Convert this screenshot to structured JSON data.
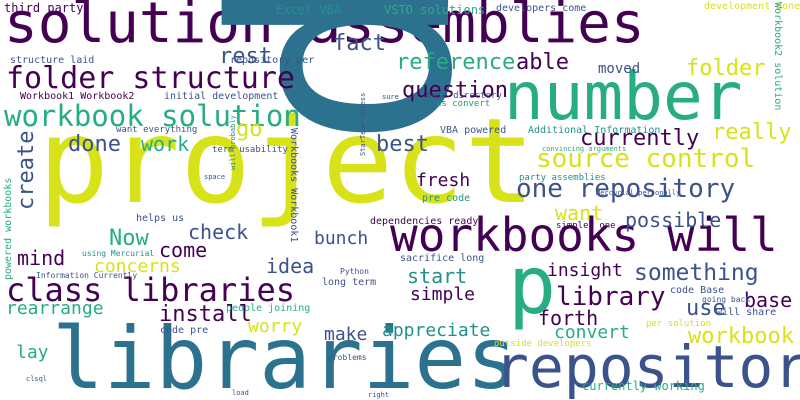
{
  "palette": {
    "deep_purple": "#440154",
    "indigo": "#3b528b",
    "teal_blue": "#2c728e",
    "teal": "#21918c",
    "green": "#27ad81",
    "light_green": "#5ec962",
    "yellow_green": "#addc30",
    "yellow": "#d8e219"
  },
  "words": [
    {
      "text": "project",
      "color": "#d8e219"
    },
    {
      "text": "solution assemblies",
      "color": "#440154"
    },
    {
      "text": "number",
      "color": "#27ad81"
    },
    {
      "text": "libraries",
      "color": "#2c728e"
    },
    {
      "text": "p",
      "color": "#2c728e"
    },
    {
      "text": "p",
      "color": "#27ad81"
    },
    {
      "text": "workbooks will",
      "color": "#440154"
    },
    {
      "text": "repository",
      "color": "#3b528b"
    },
    {
      "text": "class libraries",
      "color": "#440154"
    },
    {
      "text": "folder structure",
      "color": "#440154"
    },
    {
      "text": "workbook solution",
      "color": "#27ad81"
    },
    {
      "text": "source control",
      "color": "#d8e219"
    },
    {
      "text": "one repository",
      "color": "#3b528b"
    },
    {
      "text": "library",
      "color": "#440154"
    },
    {
      "text": "workbook",
      "color": "#d8e219"
    },
    {
      "text": "something",
      "color": "#3b528b"
    },
    {
      "text": "reference",
      "color": "#27ad81"
    },
    {
      "text": "question",
      "color": "#440154"
    },
    {
      "text": "currently",
      "color": "#440154"
    },
    {
      "text": "really",
      "color": "#d8e219"
    },
    {
      "text": "folder",
      "color": "#d8e219"
    },
    {
      "text": "able",
      "color": "#440154"
    },
    {
      "text": "fact",
      "color": "#3b528b"
    },
    {
      "text": "rest",
      "color": "#3b528b"
    },
    {
      "text": "go",
      "color": "#d8e219"
    },
    {
      "text": "done",
      "color": "#3b528b"
    },
    {
      "text": "work",
      "color": "#27ad81"
    },
    {
      "text": "best",
      "color": "#3b528b"
    },
    {
      "text": "fresh",
      "color": "#440154"
    },
    {
      "text": "want",
      "color": "#d8e219"
    },
    {
      "text": "possible",
      "color": "#3b528b"
    },
    {
      "text": "Now",
      "color": "#27ad81"
    },
    {
      "text": "create",
      "color": "#3b528b"
    },
    {
      "text": "idea",
      "color": "#3b528b"
    },
    {
      "text": "check",
      "color": "#3b528b"
    },
    {
      "text": "come",
      "color": "#440154"
    },
    {
      "text": "mind",
      "color": "#440154"
    },
    {
      "text": "concerns",
      "color": "#d8e219"
    },
    {
      "text": "bunch",
      "color": "#3b528b"
    },
    {
      "text": "start",
      "color": "#21918c"
    },
    {
      "text": "insight",
      "color": "#440154"
    },
    {
      "text": "forth",
      "color": "#440154"
    },
    {
      "text": "use",
      "color": "#3b528b"
    },
    {
      "text": "base",
      "color": "#440154"
    },
    {
      "text": "install",
      "color": "#440154"
    },
    {
      "text": "simple",
      "color": "#440154"
    },
    {
      "text": "rearrange",
      "color": "#27ad81"
    },
    {
      "text": "worry",
      "color": "#d8e219"
    },
    {
      "text": "make",
      "color": "#3b528b"
    },
    {
      "text": "appreciate",
      "color": "#21918c"
    },
    {
      "text": "convert",
      "color": "#27ad81"
    },
    {
      "text": "lay",
      "color": "#27ad81"
    },
    {
      "text": "moved",
      "color": "#3b528b"
    },
    {
      "text": "third party",
      "color": "#440154"
    },
    {
      "text": "Excel VBA",
      "color": "#21918c"
    },
    {
      "text": "VSTO solutions",
      "color": "#27ad81"
    },
    {
      "text": "developers come",
      "color": "#3b528b"
    },
    {
      "text": "development done",
      "color": "#d8e219"
    },
    {
      "text": "structure laid",
      "color": "#3b528b"
    },
    {
      "text": "repository per",
      "color": "#3b528b"
    },
    {
      "text": "Workbook1 Workbook2",
      "color": "#440154"
    },
    {
      "text": "initial development",
      "color": "#3b528b"
    },
    {
      "text": "VBA powered",
      "color": "#3b528b"
    },
    {
      "text": "Additional Information",
      "color": "#21918c"
    },
    {
      "text": "pre code",
      "color": "#21918c"
    },
    {
      "text": "party assemblies",
      "color": "#21918c"
    },
    {
      "text": "helps us",
      "color": "#3b528b"
    },
    {
      "text": "code Base",
      "color": "#3b528b"
    },
    {
      "text": "will share",
      "color": "#3b528b"
    },
    {
      "text": "going back",
      "color": "#3b528b"
    },
    {
      "text": "sacrifice long",
      "color": "#3b528b"
    },
    {
      "text": "long term",
      "color": "#3b528b"
    },
    {
      "text": "dependencies ready",
      "color": "#440154"
    },
    {
      "text": "currently working",
      "color": "#27ad81"
    },
    {
      "text": "people joining",
      "color": "#27ad81"
    },
    {
      "text": "code pre",
      "color": "#3b528b"
    },
    {
      "text": "Workbook2 solution",
      "color": "#27ad81"
    },
    {
      "text": "Workbooks Workbook1",
      "color": "#3b528b"
    },
    {
      "text": "powered workbooks",
      "color": "#27ad81"
    },
    {
      "text": "want everything",
      "color": "#3b528b"
    },
    {
      "text": "term usability",
      "color": "#3b528b"
    },
    {
      "text": "simpler one",
      "color": "#440154"
    },
    {
      "text": "per solution",
      "color": "#d8e219"
    },
    {
      "text": "outside developers",
      "color": "#d8e219"
    },
    {
      "text": "base directory",
      "color": "#3b528b"
    },
    {
      "text": "us convert",
      "color": "#21918c"
    },
    {
      "text": "Python",
      "color": "#3b528b"
    },
    {
      "text": "problems",
      "color": "#3b528b"
    },
    {
      "text": "Information Currently",
      "color": "#3b528b"
    },
    {
      "text": "using Mercurial",
      "color": "#21918c"
    },
    {
      "text": "Mercurial personally",
      "color": "#3b528b"
    },
    {
      "text": "StarTeam unless",
      "color": "#3b528b"
    },
    {
      "text": "will probably",
      "color": "#21918c"
    },
    {
      "text": "sure",
      "color": "#3b528b"
    },
    {
      "text": "convincing arguments",
      "color": "#27ad81"
    },
    {
      "text": "space",
      "color": "#3b528b"
    },
    {
      "text": "clsql",
      "color": "#3b528b"
    },
    {
      "text": "load",
      "color": "#3b528b"
    },
    {
      "text": "right",
      "color": "#3b528b"
    }
  ]
}
